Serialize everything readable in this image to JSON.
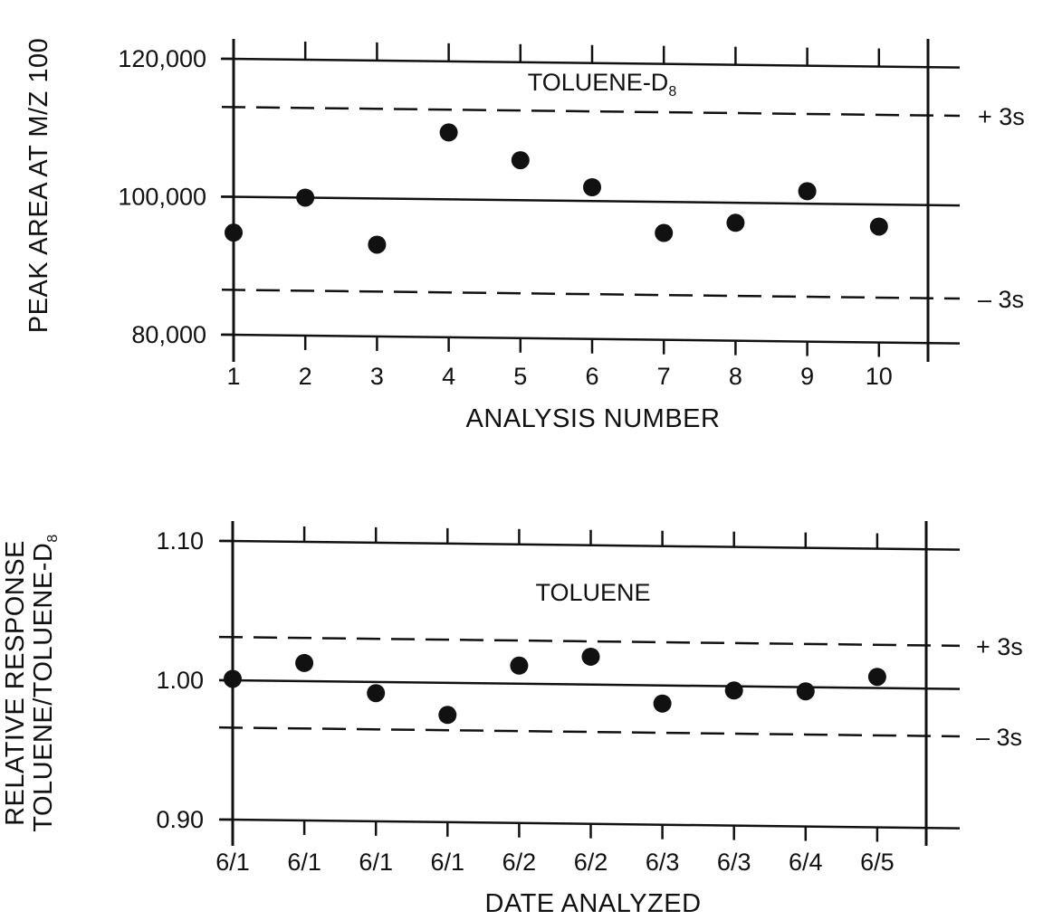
{
  "chart_data": [
    {
      "type": "scatter",
      "title": "",
      "annotation": "TOLUENE-D",
      "annotation_sub": "8",
      "xlabel": "ANALYSIS NUMBER",
      "ylabel": "PEAK AREA AT M/Z 100",
      "x_tick_labels": [
        "1",
        "2",
        "3",
        "4",
        "5",
        "6",
        "7",
        "8",
        "9",
        "10"
      ],
      "y_tick_labels": [
        "120,000",
        "100,000",
        "80,000"
      ],
      "y_ticks": [
        120000,
        100000,
        80000
      ],
      "ylim": [
        80000,
        120000
      ],
      "x": [
        1,
        2,
        3,
        4,
        5,
        6,
        7,
        8,
        9,
        10
      ],
      "values": [
        94800,
        100000,
        93300,
        109700,
        105800,
        102000,
        95500,
        97100,
        101800,
        96800
      ],
      "control_lines": [
        {
          "label": "+ 3s",
          "value": 113000,
          "style": "dashed"
        },
        {
          "label": "",
          "value": 100000,
          "style": "solid"
        },
        {
          "label": "– 3s",
          "value": 86500,
          "style": "dashed"
        }
      ],
      "grid": false
    },
    {
      "type": "scatter",
      "title": "",
      "annotation": "TOLUENE",
      "xlabel": "DATE ANALYZED",
      "ylabel": "RELATIVE RESPONSE",
      "ylabel2": "TOLUENE/TOLUENE-D",
      "ylabel2_sub": "8",
      "x_tick_labels": [
        "6/1",
        "6/1",
        "6/1",
        "6/1",
        "6/2",
        "6/2",
        "6/3",
        "6/3",
        "6/4",
        "6/5"
      ],
      "y_tick_labels": [
        "1.10",
        "1.00",
        "0.90"
      ],
      "y_ticks": [
        1.1,
        1.0,
        0.9
      ],
      "ylim": [
        0.9,
        1.1
      ],
      "x": [
        1,
        2,
        3,
        4,
        5,
        6,
        7,
        8,
        9,
        10
      ],
      "values": [
        1.001,
        1.013,
        0.992,
        0.977,
        1.013,
        1.02,
        0.987,
        0.997,
        0.997,
        1.008
      ],
      "control_lines": [
        {
          "label": "+ 3s",
          "value": 1.031,
          "style": "dashed"
        },
        {
          "label": "",
          "value": 1.0,
          "style": "solid"
        },
        {
          "label": "– 3s",
          "value": 0.966,
          "style": "dashed"
        }
      ],
      "grid": false
    }
  ]
}
